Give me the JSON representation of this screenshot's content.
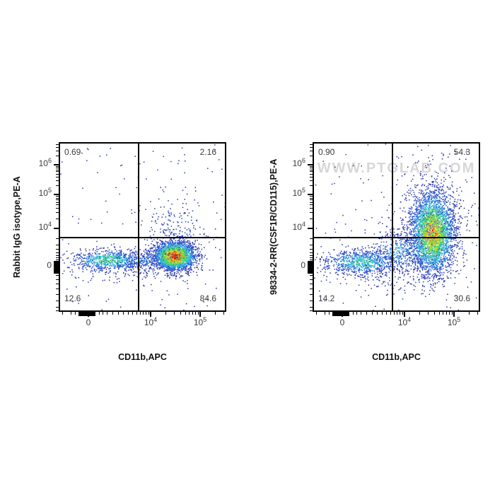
{
  "figure": {
    "background": "#ffffff",
    "description": "Two-panel flow cytometry pseudocolor density dot plots"
  },
  "colormap": [
    {
      "t": 0.0,
      "c": "#28309c"
    },
    {
      "t": 0.1,
      "c": "#2a46c8"
    },
    {
      "t": 0.22,
      "c": "#2e7de0"
    },
    {
      "t": 0.34,
      "c": "#35c0e2"
    },
    {
      "t": 0.46,
      "c": "#3fd0a0"
    },
    {
      "t": 0.55,
      "c": "#47cf52"
    },
    {
      "t": 0.68,
      "c": "#9adf3a"
    },
    {
      "t": 0.78,
      "c": "#f2e32e"
    },
    {
      "t": 0.88,
      "c": "#ff9c16"
    },
    {
      "t": 0.95,
      "c": "#f4491c"
    },
    {
      "t": 1.0,
      "c": "#e01408"
    }
  ],
  "chart_data": [
    {
      "type": "scatter",
      "subtype": "flow-cytometry-pseudocolor-density",
      "title": "",
      "xlabel": "CD11b,APC",
      "ylabel": "Rabbit IgG isotype,PE-A",
      "x_scale": "biexponential",
      "y_scale": "biexponential",
      "x_tick_labels": [
        {
          "base": "0",
          "exp": ""
        },
        {
          "base": "10",
          "exp": "4"
        },
        {
          "base": "10",
          "exp": "5"
        }
      ],
      "y_tick_labels": [
        {
          "base": "10",
          "exp": "6"
        },
        {
          "base": "10",
          "exp": "5"
        },
        {
          "base": "10",
          "exp": "4"
        },
        {
          "base": "0",
          "exp": ""
        }
      ],
      "gate": {
        "x_frac": 0.4726,
        "y_frac": 0.5625,
        "x_value_approx": "6e3",
        "y_value_approx": "6e3"
      },
      "quadrant_labels": {
        "tl": "0.69",
        "tr": "2.16",
        "bl": "12.6",
        "br": "84.6"
      },
      "quadrant_percentages": {
        "upper_left": 0.69,
        "upper_right": 2.16,
        "lower_left": 12.6,
        "lower_right": 84.6
      },
      "watermark": "",
      "seed": 12345,
      "populations": [
        {
          "name": "sparse-background",
          "shape": "uniform",
          "n": 140,
          "level": 0.05
        },
        {
          "name": "upper-halo",
          "shape": "gauss",
          "cx": 0.692,
          "cy": 0.533,
          "sx": 0.093,
          "sy": 0.112,
          "n": 230,
          "level": 0.12
        },
        {
          "name": "low-scatter",
          "shape": "gauss",
          "cx": 0.42,
          "cy": 0.76,
          "sx": 0.19,
          "sy": 0.05,
          "n": 130,
          "level": 0.08
        },
        {
          "name": "cd11b-neg-band",
          "shape": "gauss",
          "cx": 0.295,
          "cy": 0.696,
          "sx": 0.11,
          "sy": 0.031,
          "n": 750,
          "level": 0.5
        },
        {
          "name": "bridge",
          "shape": "gauss",
          "cx": 0.506,
          "cy": 0.692,
          "sx": 0.076,
          "sy": 0.033,
          "n": 200,
          "level": 0.28
        },
        {
          "name": "cd11b-pos-main",
          "shape": "gauss",
          "cx": 0.692,
          "cy": 0.671,
          "sx": 0.063,
          "sy": 0.042,
          "n": 2600,
          "level": 1.0
        }
      ]
    },
    {
      "type": "scatter",
      "subtype": "flow-cytometry-pseudocolor-density",
      "title": "",
      "xlabel": "CD11b,APC",
      "ylabel": "98334-2-RR(CSF1R/CD115),PE-A",
      "x_scale": "biexponential",
      "y_scale": "biexponential",
      "x_tick_labels": [
        {
          "base": "0",
          "exp": ""
        },
        {
          "base": "10",
          "exp": "4"
        },
        {
          "base": "10",
          "exp": "5"
        }
      ],
      "y_tick_labels": [
        {
          "base": "10",
          "exp": "6"
        },
        {
          "base": "10",
          "exp": "5"
        },
        {
          "base": "10",
          "exp": "4"
        },
        {
          "base": "0",
          "exp": ""
        }
      ],
      "gate": {
        "x_frac": 0.4726,
        "y_frac": 0.5625,
        "x_value_approx": "6e3",
        "y_value_approx": "6e3"
      },
      "quadrant_labels": {
        "tl": "0.90",
        "tr": "54.3",
        "bl": "14.2",
        "br": "30.6"
      },
      "quadrant_percentages": {
        "upper_left": 0.9,
        "upper_right": 54.3,
        "lower_left": 14.2,
        "lower_right": 30.6
      },
      "watermark": "WWW.PTGLAB.COM",
      "seed": 98765,
      "populations": [
        {
          "name": "sparse-background",
          "shape": "uniform",
          "n": 170,
          "level": 0.05
        },
        {
          "name": "upper-halo",
          "shape": "gauss",
          "cx": 0.709,
          "cy": 0.42,
          "sx": 0.127,
          "sy": 0.175,
          "n": 330,
          "level": 0.1
        },
        {
          "name": "low-scatter",
          "shape": "gauss",
          "cx": 0.44,
          "cy": 0.78,
          "sx": 0.21,
          "sy": 0.06,
          "n": 140,
          "level": 0.07
        },
        {
          "name": "cd11b-neg-band",
          "shape": "gauss",
          "cx": 0.287,
          "cy": 0.708,
          "sx": 0.118,
          "sy": 0.0375,
          "n": 800,
          "level": 0.45
        },
        {
          "name": "bridge",
          "shape": "gauss",
          "cx": 0.527,
          "cy": 0.646,
          "sx": 0.105,
          "sy": 0.067,
          "n": 480,
          "level": 0.3
        },
        {
          "name": "csf1r-pos-main",
          "shape": "gauss",
          "cx": 0.717,
          "cy": 0.533,
          "sx": 0.0675,
          "sy": 0.125,
          "n": 3200,
          "level": 0.82
        }
      ]
    }
  ]
}
